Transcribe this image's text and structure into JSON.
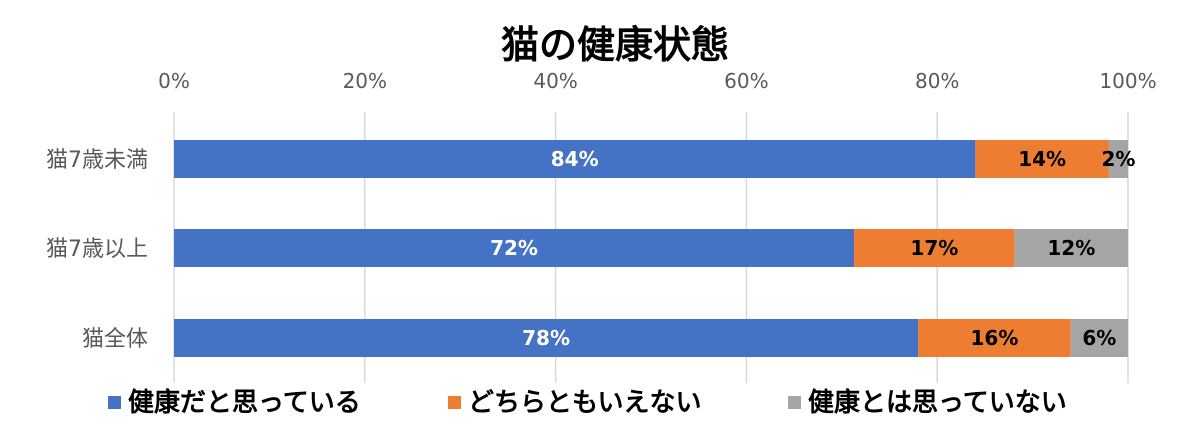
{
  "chart_data": {
    "type": "bar",
    "orientation": "horizontal",
    "stacked": "percent",
    "title": "猫の健康状態",
    "categories": [
      "猫7歳未満",
      "猫7歳以上",
      "猫全体"
    ],
    "series": [
      {
        "name": "健康だと思っている",
        "values": [
          84,
          72,
          78
        ],
        "labels": [
          "84%",
          "72%",
          "78%"
        ],
        "color": "#4472c4",
        "label_color": "#ffffff"
      },
      {
        "name": "どちらともいえない",
        "values": [
          14,
          17,
          16
        ],
        "labels": [
          "14%",
          "17%",
          "16%"
        ],
        "color": "#ed7d31",
        "label_color": "#000000"
      },
      {
        "name": "健康とは思っていない",
        "values": [
          2,
          12,
          6
        ],
        "labels": [
          "2%",
          "12%",
          "6%"
        ],
        "color": "#a5a5a5",
        "label_color": "#000000"
      }
    ],
    "x_ticks": [
      "0%",
      "20%",
      "40%",
      "60%",
      "80%",
      "100%"
    ],
    "xlim": [
      0,
      100
    ],
    "x_axis_position": "top",
    "grid": true,
    "legend_position": "bottom"
  }
}
